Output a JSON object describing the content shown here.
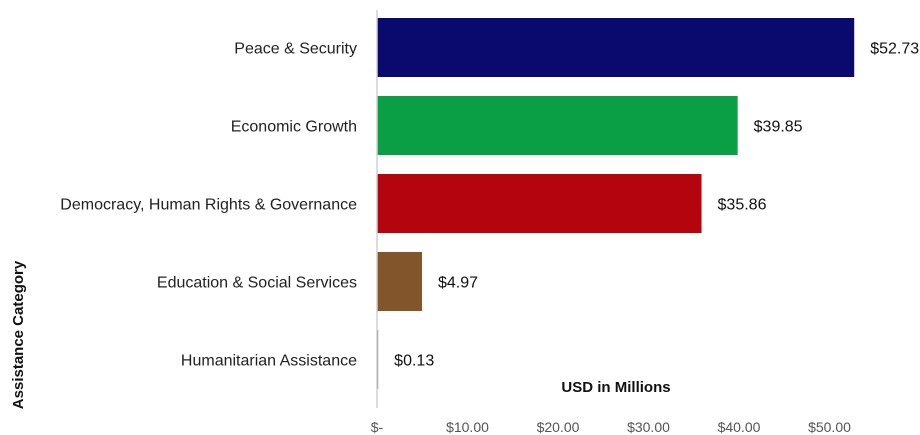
{
  "chart_data": {
    "type": "bar",
    "orientation": "horizontal",
    "categories": [
      "Peace & Security",
      "Economic Growth",
      "Democracy, Human Rights & Governance",
      "Education & Social Services",
      "Humanitarian Assistance"
    ],
    "values": [
      52.73,
      39.85,
      35.86,
      4.97,
      0.13
    ],
    "value_labels": [
      "$52.73",
      "$39.85",
      "$35.86",
      "$4.97",
      "$0.13"
    ],
    "colors": [
      "#0a0a6e",
      "#0a9e45",
      "#b4050f",
      "#82552b",
      "#6b6b6b"
    ],
    "xlim": [
      0,
      55
    ],
    "x_ticks": [
      0,
      10,
      20,
      30,
      40,
      50
    ],
    "x_tick_labels": [
      "$-",
      "$10.00",
      "$20.00",
      "$30.00",
      "$40.00",
      "$50.00"
    ],
    "xlabel": "USD in Millions",
    "ylabel": "Assistance Category",
    "grid": false,
    "legend": "none"
  }
}
